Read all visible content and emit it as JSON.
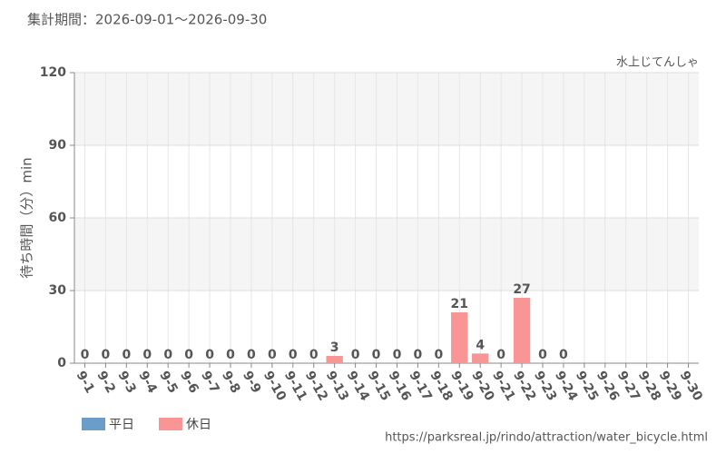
{
  "chart_data": {
    "type": "bar",
    "header": "集計期間：2026-09-01～2026-09-30",
    "title": "水上じてんしゃ",
    "y_label": "待ち時間（分）min",
    "footer": "https://parksreal.jp/rindo/attraction/water_bicycle.html",
    "categories": [
      "9-1",
      "9-2",
      "9-3",
      "9-4",
      "9-5",
      "9-6",
      "9-7",
      "9-8",
      "9-9",
      "9-10",
      "9-11",
      "9-12",
      "9-13",
      "9-14",
      "9-15",
      "9-16",
      "9-17",
      "9-18",
      "9-19",
      "9-20",
      "9-21",
      "9-22",
      "9-23",
      "9-24",
      "9-25",
      "9-26",
      "9-27",
      "9-28",
      "9-29",
      "9-30"
    ],
    "category_colors": [
      "#6a9ec8",
      "#6a9ec8",
      "#6a9ec8",
      "#6a9ec8",
      "#f08a8a",
      "#f08a8a",
      "#6a9ec8",
      "#6a9ec8",
      "#6a9ec8",
      "#6a9ec8",
      "#6a9ec8",
      "#f08a8a",
      "#f08a8a",
      "#6a9ec8",
      "#6a9ec8",
      "#6a9ec8",
      "#6a9ec8",
      "#6a9ec8",
      "#f08a8a",
      "#f08a8a",
      "#f08a8a",
      "#f08a8a",
      "#f08a8a",
      "#6a9ec8",
      "#6a9ec8",
      "#f08a8a",
      "#f08a8a",
      "#6a9ec8",
      "#6a9ec8",
      "#6a9ec8"
    ],
    "series": [
      {
        "name": "平日",
        "color": "#6a9ec8",
        "values": [
          0,
          0,
          0,
          0,
          null,
          null,
          0,
          0,
          0,
          0,
          0,
          null,
          null,
          0,
          0,
          0,
          0,
          0,
          null,
          null,
          null,
          null,
          null,
          0,
          null,
          null,
          null,
          null,
          null,
          null
        ]
      },
      {
        "name": "休日",
        "color": "#f99595",
        "values": [
          null,
          null,
          null,
          null,
          0,
          0,
          null,
          null,
          null,
          null,
          null,
          0,
          3,
          null,
          null,
          null,
          null,
          null,
          21,
          4,
          0,
          27,
          0,
          null,
          null,
          null,
          null,
          null,
          null,
          null
        ]
      }
    ],
    "ylim": [
      0,
      120
    ],
    "yticks": [
      0,
      30,
      60,
      90,
      120
    ],
    "grid": true
  }
}
